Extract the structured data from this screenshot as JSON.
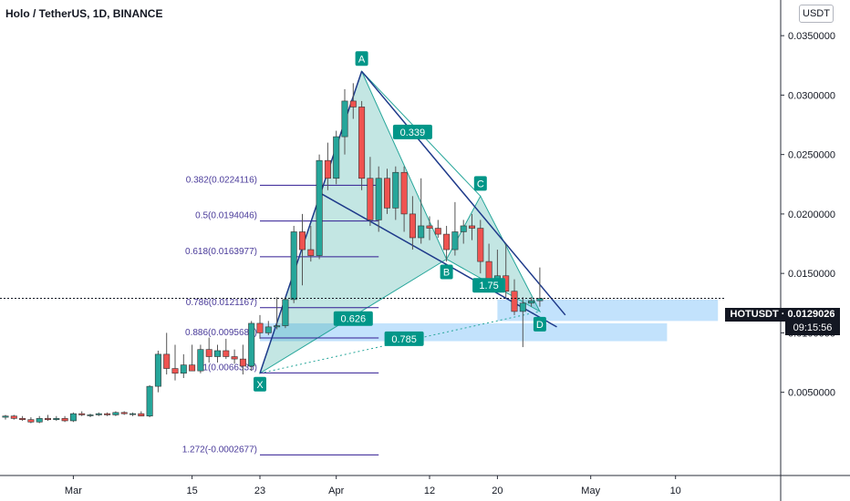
{
  "header": {
    "title": "Holo / TetherUS, 1D, BINANCE"
  },
  "currency_button": "USDT",
  "last_price": {
    "symbol_value": "HOTUSDT · 0.0129026",
    "countdown": "09:15:56",
    "value": 0.0129026
  },
  "colors": {
    "up": "#26a69a",
    "down": "#ef5350",
    "pattern_fill": "#26a69a",
    "line": "#1e3a8a",
    "fib": "#311b92",
    "zone": "#90caf9",
    "label_bg": "#009688"
  },
  "chart_data": {
    "type": "candlestick",
    "title": "Holo / TetherUS, 1D, BINANCE",
    "y_ticks": [
      "0.0350000",
      "0.0300000",
      "0.0250000",
      "0.0200000",
      "0.0150000",
      "0.0100000",
      "0.0050000"
    ],
    "y_tick_values": [
      0.035,
      0.03,
      0.025,
      0.02,
      0.015,
      0.01,
      0.005
    ],
    "ylim": [
      -0.002,
      0.038
    ],
    "x_ticks": [
      {
        "label": "Mar",
        "day": 8
      },
      {
        "label": "15",
        "day": 22
      },
      {
        "label": "23",
        "day": 30
      },
      {
        "label": "Apr",
        "day": 39
      },
      {
        "label": "12",
        "day": 50
      },
      {
        "label": "20",
        "day": 58
      },
      {
        "label": "May",
        "day": 69
      },
      {
        "label": "10",
        "day": 79
      }
    ],
    "candles": [
      [
        0.0029,
        0.0031,
        0.0027,
        0.003
      ],
      [
        0.003,
        0.0031,
        0.0027,
        0.0028
      ],
      [
        0.0028,
        0.003,
        0.0026,
        0.0027
      ],
      [
        0.0027,
        0.0029,
        0.0024,
        0.0025
      ],
      [
        0.0025,
        0.003,
        0.0024,
        0.0028
      ],
      [
        0.0028,
        0.0031,
        0.0026,
        0.0027
      ],
      [
        0.0027,
        0.003,
        0.0026,
        0.0028
      ],
      [
        0.0028,
        0.003,
        0.0025,
        0.0026
      ],
      [
        0.0026,
        0.0033,
        0.0025,
        0.0032
      ],
      [
        0.0032,
        0.0034,
        0.003,
        0.0031
      ],
      [
        0.0031,
        0.0032,
        0.0029,
        0.0031
      ],
      [
        0.0031,
        0.0033,
        0.003,
        0.0032
      ],
      [
        0.0032,
        0.0033,
        0.003,
        0.0031
      ],
      [
        0.0031,
        0.0034,
        0.003,
        0.0033
      ],
      [
        0.0033,
        0.0034,
        0.0031,
        0.0032
      ],
      [
        0.0032,
        0.0033,
        0.003,
        0.0032
      ],
      [
        0.0032,
        0.0034,
        0.003,
        0.003
      ],
      [
        0.003,
        0.0056,
        0.0029,
        0.0055
      ],
      [
        0.0055,
        0.0085,
        0.005,
        0.0082
      ],
      [
        0.0082,
        0.01,
        0.0065,
        0.007
      ],
      [
        0.007,
        0.009,
        0.006,
        0.0066
      ],
      [
        0.0066,
        0.0082,
        0.0062,
        0.0073
      ],
      [
        0.0073,
        0.009,
        0.0068,
        0.0068
      ],
      [
        0.0068,
        0.009,
        0.0066,
        0.0086
      ],
      [
        0.0086,
        0.0096,
        0.0075,
        0.008
      ],
      [
        0.008,
        0.009,
        0.0075,
        0.0085
      ],
      [
        0.0085,
        0.0095,
        0.0078,
        0.008
      ],
      [
        0.008,
        0.0086,
        0.0074,
        0.0078
      ],
      [
        0.0078,
        0.009,
        0.0065,
        0.0072
      ],
      [
        0.0072,
        0.011,
        0.0068,
        0.0108
      ],
      [
        0.0108,
        0.0115,
        0.0095,
        0.01
      ],
      [
        0.01,
        0.011,
        0.0098,
        0.0105
      ],
      [
        0.0105,
        0.013,
        0.0103,
        0.0106
      ],
      [
        0.0106,
        0.013,
        0.0104,
        0.0128
      ],
      [
        0.0128,
        0.019,
        0.0125,
        0.0185
      ],
      [
        0.0185,
        0.02,
        0.014,
        0.017
      ],
      [
        0.017,
        0.019,
        0.016,
        0.0165
      ],
      [
        0.0165,
        0.025,
        0.0162,
        0.0245
      ],
      [
        0.0245,
        0.026,
        0.022,
        0.023
      ],
      [
        0.023,
        0.027,
        0.0225,
        0.0265
      ],
      [
        0.0265,
        0.0305,
        0.025,
        0.0295
      ],
      [
        0.0295,
        0.031,
        0.028,
        0.029
      ],
      [
        0.029,
        0.0295,
        0.022,
        0.023
      ],
      [
        0.023,
        0.0248,
        0.019,
        0.0195
      ],
      [
        0.0195,
        0.024,
        0.0185,
        0.023
      ],
      [
        0.023,
        0.0238,
        0.02,
        0.0205
      ],
      [
        0.0205,
        0.024,
        0.0195,
        0.0235
      ],
      [
        0.0235,
        0.024,
        0.0185,
        0.02
      ],
      [
        0.02,
        0.0215,
        0.017,
        0.018
      ],
      [
        0.018,
        0.023,
        0.0175,
        0.019
      ],
      [
        0.019,
        0.0198,
        0.0178,
        0.0188
      ],
      [
        0.0188,
        0.0195,
        0.018,
        0.0183
      ],
      [
        0.0183,
        0.019,
        0.016,
        0.017
      ],
      [
        0.017,
        0.021,
        0.0165,
        0.0185
      ],
      [
        0.0185,
        0.0195,
        0.0175,
        0.019
      ],
      [
        0.019,
        0.02,
        0.0178,
        0.0188
      ],
      [
        0.0188,
        0.0195,
        0.015,
        0.016
      ],
      [
        0.016,
        0.0175,
        0.0135,
        0.0142
      ],
      [
        0.0142,
        0.017,
        0.0138,
        0.0148
      ],
      [
        0.0148,
        0.0175,
        0.013,
        0.0135
      ],
      [
        0.0135,
        0.0145,
        0.0115,
        0.0118
      ],
      [
        0.0118,
        0.013,
        0.0088,
        0.0125
      ],
      [
        0.0125,
        0.013,
        0.0122,
        0.0127
      ],
      [
        0.0127,
        0.0155,
        0.0122,
        0.0129
      ]
    ],
    "pattern": {
      "points": [
        {
          "label": "X",
          "day": 30,
          "price": 0.0066
        },
        {
          "label": "A",
          "day": 42,
          "price": 0.032
        },
        {
          "label": "B",
          "day": 52,
          "price": 0.0162
        },
        {
          "label": "C",
          "day": 56,
          "price": 0.0215
        },
        {
          "label": "D",
          "day": 63,
          "price": 0.0118
        }
      ],
      "ratios": [
        {
          "text": "0.339",
          "day": 48,
          "price": 0.0269
        },
        {
          "text": "1.75",
          "day": 57,
          "price": 0.014
        },
        {
          "text": "0.626",
          "day": 41,
          "price": 0.0112
        },
        {
          "text": "0.785",
          "day": 47,
          "price": 0.0095
        }
      ]
    },
    "fib_levels": [
      {
        "label": "0.382(0.0224116)",
        "price": 0.0224116
      },
      {
        "label": "0.5(0.0194046)",
        "price": 0.0194046
      },
      {
        "label": "0.618(0.0163977)",
        "price": 0.0163977
      },
      {
        "label": "0.786(0.0121167)",
        "price": 0.0121167
      },
      {
        "label": "0.886(0.0095685)",
        "price": 0.0095685
      },
      {
        "label": "1(0.0066335)",
        "price": 0.0066335
      },
      {
        "label": "1.272(-0.0002677)",
        "price": -0.0002677
      }
    ],
    "zones": [
      {
        "day_start": 58,
        "day_end": 84,
        "low": 0.011,
        "high": 0.0128
      },
      {
        "day_start": 30,
        "day_end": 78,
        "low": 0.0093,
        "high": 0.0108
      }
    ],
    "trend_lines": [
      {
        "d1": 42,
        "p1": 0.032,
        "d2": 66,
        "p2": 0.0115
      },
      {
        "d1": 37,
        "p1": 0.0218,
        "d2": 65,
        "p2": 0.0105
      },
      {
        "d1": 30,
        "p1": 0.0066,
        "d2": 42,
        "p2": 0.032
      }
    ]
  }
}
